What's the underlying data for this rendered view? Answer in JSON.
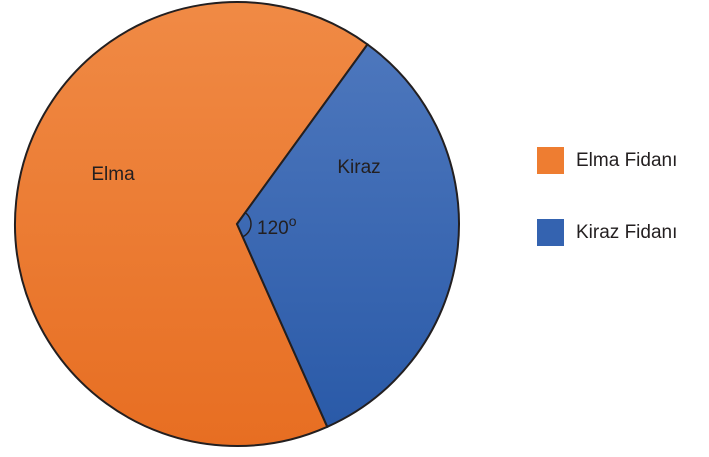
{
  "chart_data": {
    "type": "pie",
    "categories": [
      "Elma",
      "Kiraz"
    ],
    "values": [
      240,
      120
    ],
    "colors": [
      "#ee7d31",
      "#3463b0"
    ],
    "legend": [
      "Elma Fidanı",
      "Kiraz Fidanı"
    ],
    "annotation": {
      "text": "120",
      "sup": "o"
    }
  }
}
